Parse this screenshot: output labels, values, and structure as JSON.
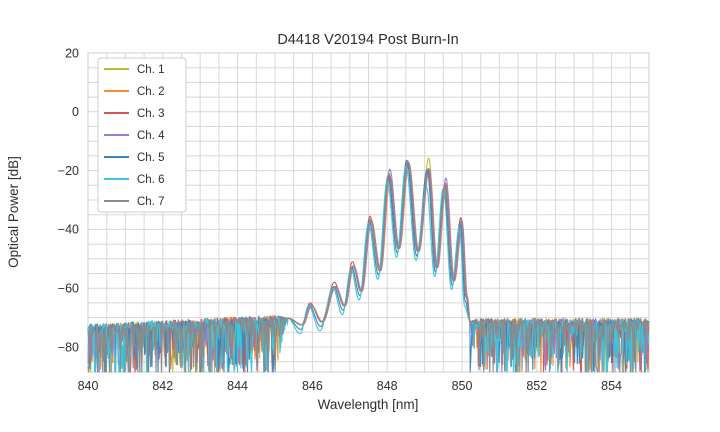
{
  "chart_data": {
    "type": "line",
    "title": "D4418 V20194 Post Burn-In",
    "xlabel": "Wavelength [nm]",
    "ylabel": "Optical Power [dB]",
    "xlim": [
      840,
      855
    ],
    "ylim": [
      -88.5,
      20
    ],
    "x_ticks": [
      840,
      842,
      844,
      846,
      848,
      850,
      852,
      854
    ],
    "y_ticks": [
      20,
      0,
      -20,
      -40,
      -60,
      -80
    ],
    "grid": {
      "x_step_nm": 0.5,
      "y_step_db": 5,
      "color": "#d8d8d8",
      "frame_color": "#cfcfcf"
    },
    "legend": {
      "position": "upper-left",
      "border_color": "#cccccc",
      "background": "#ffffff"
    },
    "noise_floor": {
      "left_top_db_start": -73.5,
      "left_top_db_end": -70.2,
      "noise_end_nm": 845.35,
      "right_start_nm": 850.22,
      "right_top_db": -71.5,
      "jitter_db": 1.3,
      "spike_depth_db": 19,
      "floor_db": -88.5
    },
    "fringes": {
      "comment_units": "[wavelength_nm, optical_power_db]",
      "peaks": [
        [
          845.95,
          -66.0
        ],
        [
          846.6,
          -59.5
        ],
        [
          847.08,
          -52.5
        ],
        [
          847.55,
          -37.0
        ],
        [
          848.05,
          -21.0
        ],
        [
          848.55,
          -17.0
        ],
        [
          849.1,
          -18.5
        ],
        [
          849.55,
          -24.0
        ],
        [
          849.98,
          -37.0
        ]
      ],
      "valleys": [
        [
          845.72,
          -72.5
        ],
        [
          846.25,
          -71.5
        ],
        [
          846.85,
          -66.0
        ],
        [
          847.3,
          -61.0
        ],
        [
          847.8,
          -54.0
        ],
        [
          848.3,
          -46.5
        ],
        [
          848.82,
          -47.5
        ],
        [
          849.32,
          -53.0
        ],
        [
          849.77,
          -57.5
        ],
        [
          850.12,
          -63.0
        ]
      ]
    },
    "channels": [
      {
        "label": "Ch. 1",
        "color": "#bfbc33",
        "shift_nm": 0.01,
        "peak_delta": [
          0,
          0,
          0,
          0,
          -1,
          -0.5,
          2.7,
          -1,
          0
        ],
        "valley_delta": 0,
        "spike_scale": 1.0
      },
      {
        "label": "Ch. 2",
        "color": "#fa8b2d",
        "shift_nm": 0.03,
        "peak_delta": [
          0,
          0,
          0,
          0,
          -1.5,
          -0.5,
          -1,
          -0.5,
          -1.5
        ],
        "valley_delta": 0,
        "spike_scale": 1.0
      },
      {
        "label": "Ch. 3",
        "color": "#d85555",
        "shift_nm": -0.01,
        "peak_delta": [
          1,
          1.5,
          1.5,
          1.5,
          -0.5,
          0,
          -1.5,
          -1,
          1
        ],
        "valley_delta": 0,
        "spike_scale": 1.0
      },
      {
        "label": "Ch. 4",
        "color": "#a07cc6",
        "shift_nm": 0.02,
        "peak_delta": [
          0,
          0,
          0,
          -0.5,
          1.5,
          -0.3,
          -1,
          1.5,
          0
        ],
        "valley_delta": 0,
        "spike_scale": 1.0
      },
      {
        "label": "Ch. 5",
        "color": "#3d84ba",
        "shift_nm": -0.03,
        "peak_delta": [
          0,
          0,
          -0.5,
          0,
          -1,
          0.5,
          -1.2,
          -2.5,
          -0.5
        ],
        "valley_delta": -1.5,
        "spike_scale": 1.1
      },
      {
        "label": "Ch. 6",
        "color": "#3ec6da",
        "shift_nm": -0.05,
        "peak_delta": [
          0,
          -0.5,
          -1,
          -1,
          -2.5,
          -1.5,
          -7,
          -2,
          -2
        ],
        "valley_delta": -3,
        "spike_scale": 1.3
      },
      {
        "label": "Ch. 7",
        "color": "#8b8b8b",
        "shift_nm": 0.0,
        "peak_delta": [
          0.5,
          0,
          0,
          0.5,
          0,
          0.3,
          -0.8,
          -0.2,
          0
        ],
        "valley_delta": 0,
        "spike_scale": 1.2
      }
    ],
    "deep_spikes": [
      {
        "channel": 5,
        "x_nm": 844.95,
        "depth_db": -88.5
      },
      {
        "channel": 5,
        "x_nm": 850.22,
        "depth_db": -88.5
      },
      {
        "channel": 7,
        "x_nm": 844.52,
        "depth_db": -87.0
      },
      {
        "channel": 4,
        "x_nm": 843.35,
        "depth_db": -85.0
      },
      {
        "channel": 6,
        "x_nm": 841.1,
        "depth_db": -88.0
      },
      {
        "channel": 6,
        "x_nm": 843.9,
        "depth_db": -87.5
      },
      {
        "channel": 6,
        "x_nm": 851.3,
        "depth_db": -86.5
      },
      {
        "channel": 6,
        "x_nm": 852.8,
        "depth_db": -88.0
      }
    ]
  }
}
